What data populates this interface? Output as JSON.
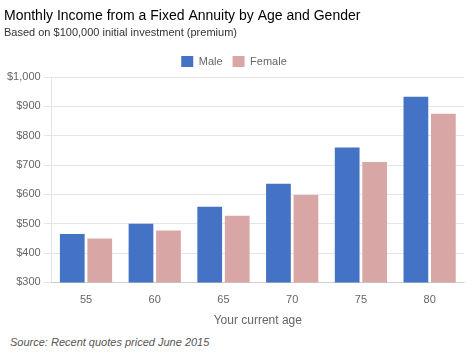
{
  "chart_data": {
    "type": "bar",
    "title": "Monthly Income from a Fixed Annuity by Age and Gender",
    "subtitle": "Based on $100,000 initial investment (premium)",
    "xlabel": "Your current age",
    "source": "Source: Recent quotes priced June 2015",
    "categories": [
      "55",
      "60",
      "65",
      "70",
      "75",
      "80"
    ],
    "series": [
      {
        "name": "Male",
        "color": "#4472C4",
        "values": [
          465,
          500,
          558,
          636,
          760,
          933
        ]
      },
      {
        "name": "Female",
        "color": "#D9A6A6",
        "values": [
          450,
          477,
          527,
          598,
          710,
          875
        ]
      }
    ],
    "ylim": [
      300,
      1000
    ],
    "yticks": [
      {
        "value": 300,
        "label": "$300"
      },
      {
        "value": 400,
        "label": "$400"
      },
      {
        "value": 500,
        "label": "$500"
      },
      {
        "value": 600,
        "label": "$600"
      },
      {
        "value": 700,
        "label": "$700"
      },
      {
        "value": 800,
        "label": "$800"
      },
      {
        "value": 900,
        "label": "$900"
      },
      {
        "value": 1000,
        "label": "$1,000"
      }
    ],
    "grid": true,
    "legend": "top"
  }
}
